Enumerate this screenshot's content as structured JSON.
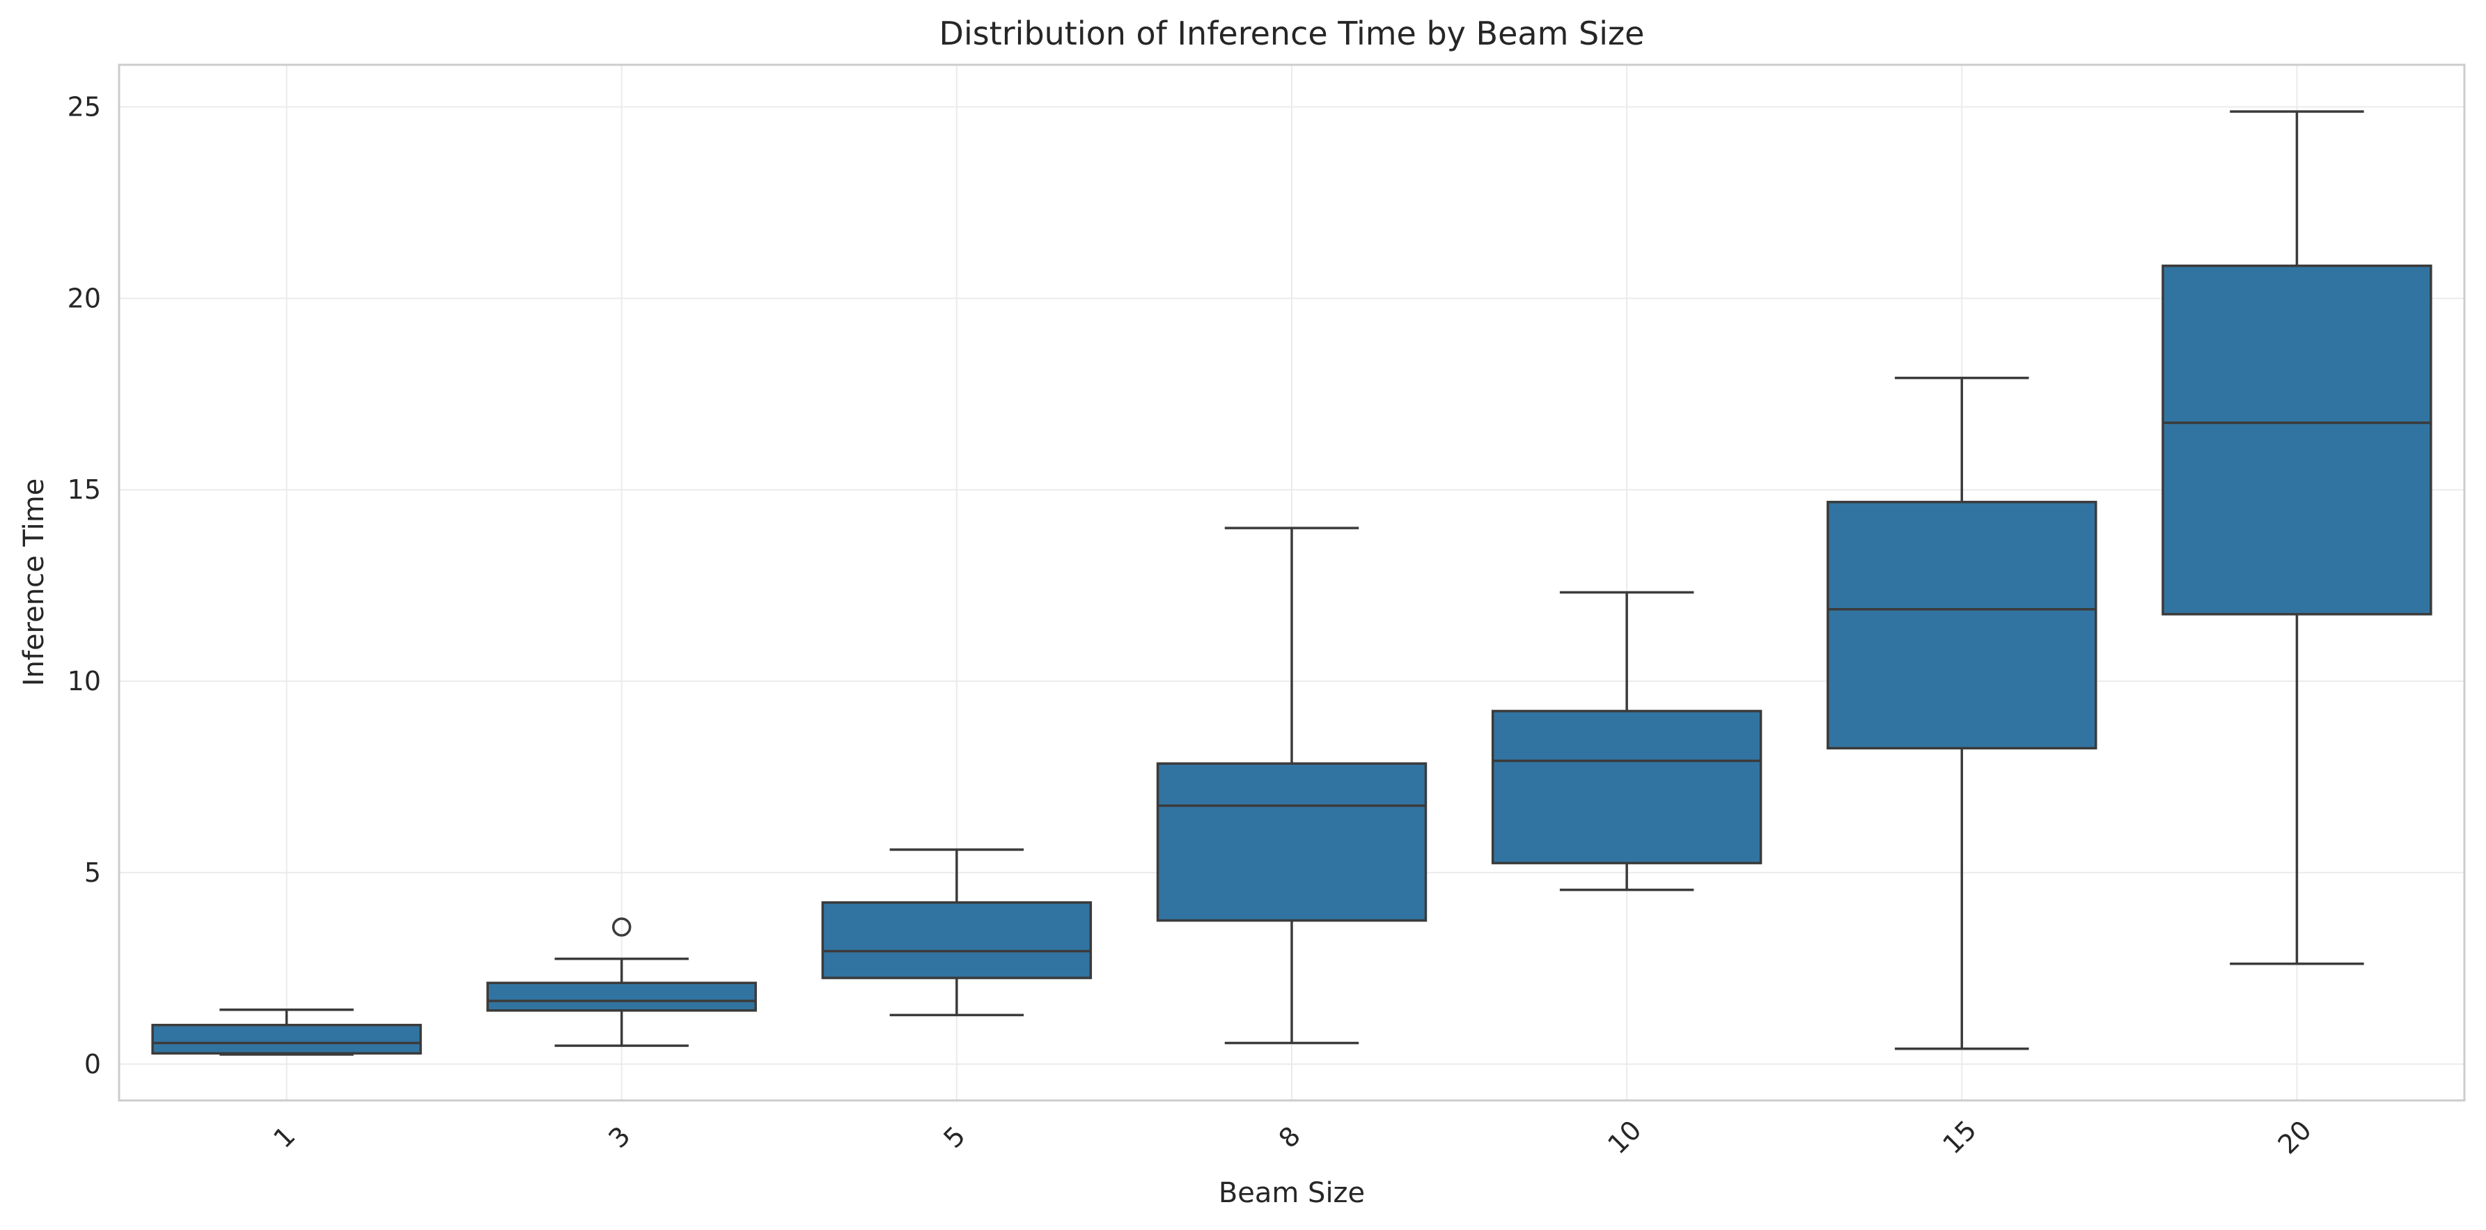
{
  "chart_data": {
    "type": "box",
    "title": "Distribution of Inference Time by Beam Size",
    "xlabel": "Beam Size",
    "ylabel": "Inference Time",
    "ylim": [
      -0.95,
      26.1
    ],
    "yticks": [
      0,
      5,
      10,
      15,
      20,
      25
    ],
    "grid": true,
    "categories": [
      "1",
      "3",
      "5",
      "8",
      "10",
      "15",
      "20"
    ],
    "boxes": [
      {
        "whisker_low": 0.25,
        "q1": 0.28,
        "median": 0.55,
        "q3": 1.02,
        "whisker_high": 1.42,
        "outliers": []
      },
      {
        "whisker_low": 0.48,
        "q1": 1.4,
        "median": 1.65,
        "q3": 2.12,
        "whisker_high": 2.75,
        "outliers": [
          3.58
        ]
      },
      {
        "whisker_low": 1.28,
        "q1": 2.25,
        "median": 2.95,
        "q3": 4.22,
        "whisker_high": 5.6,
        "outliers": []
      },
      {
        "whisker_low": 0.55,
        "q1": 3.75,
        "median": 6.75,
        "q3": 7.85,
        "whisker_high": 14.0,
        "outliers": []
      },
      {
        "whisker_low": 4.55,
        "q1": 5.25,
        "median": 7.92,
        "q3": 9.22,
        "whisker_high": 12.32,
        "outliers": []
      },
      {
        "whisker_low": 0.4,
        "q1": 8.25,
        "median": 11.88,
        "q3": 14.68,
        "whisker_high": 17.92,
        "outliers": []
      },
      {
        "whisker_low": 2.62,
        "q1": 11.75,
        "median": 16.75,
        "q3": 20.85,
        "whisker_high": 24.88,
        "outliers": []
      }
    ],
    "colors": {
      "box_fill": "#3274a1",
      "line": "#3b3b3b",
      "grid": "#ebebeb",
      "frame": "#cccccc",
      "text": "#262626"
    }
  }
}
